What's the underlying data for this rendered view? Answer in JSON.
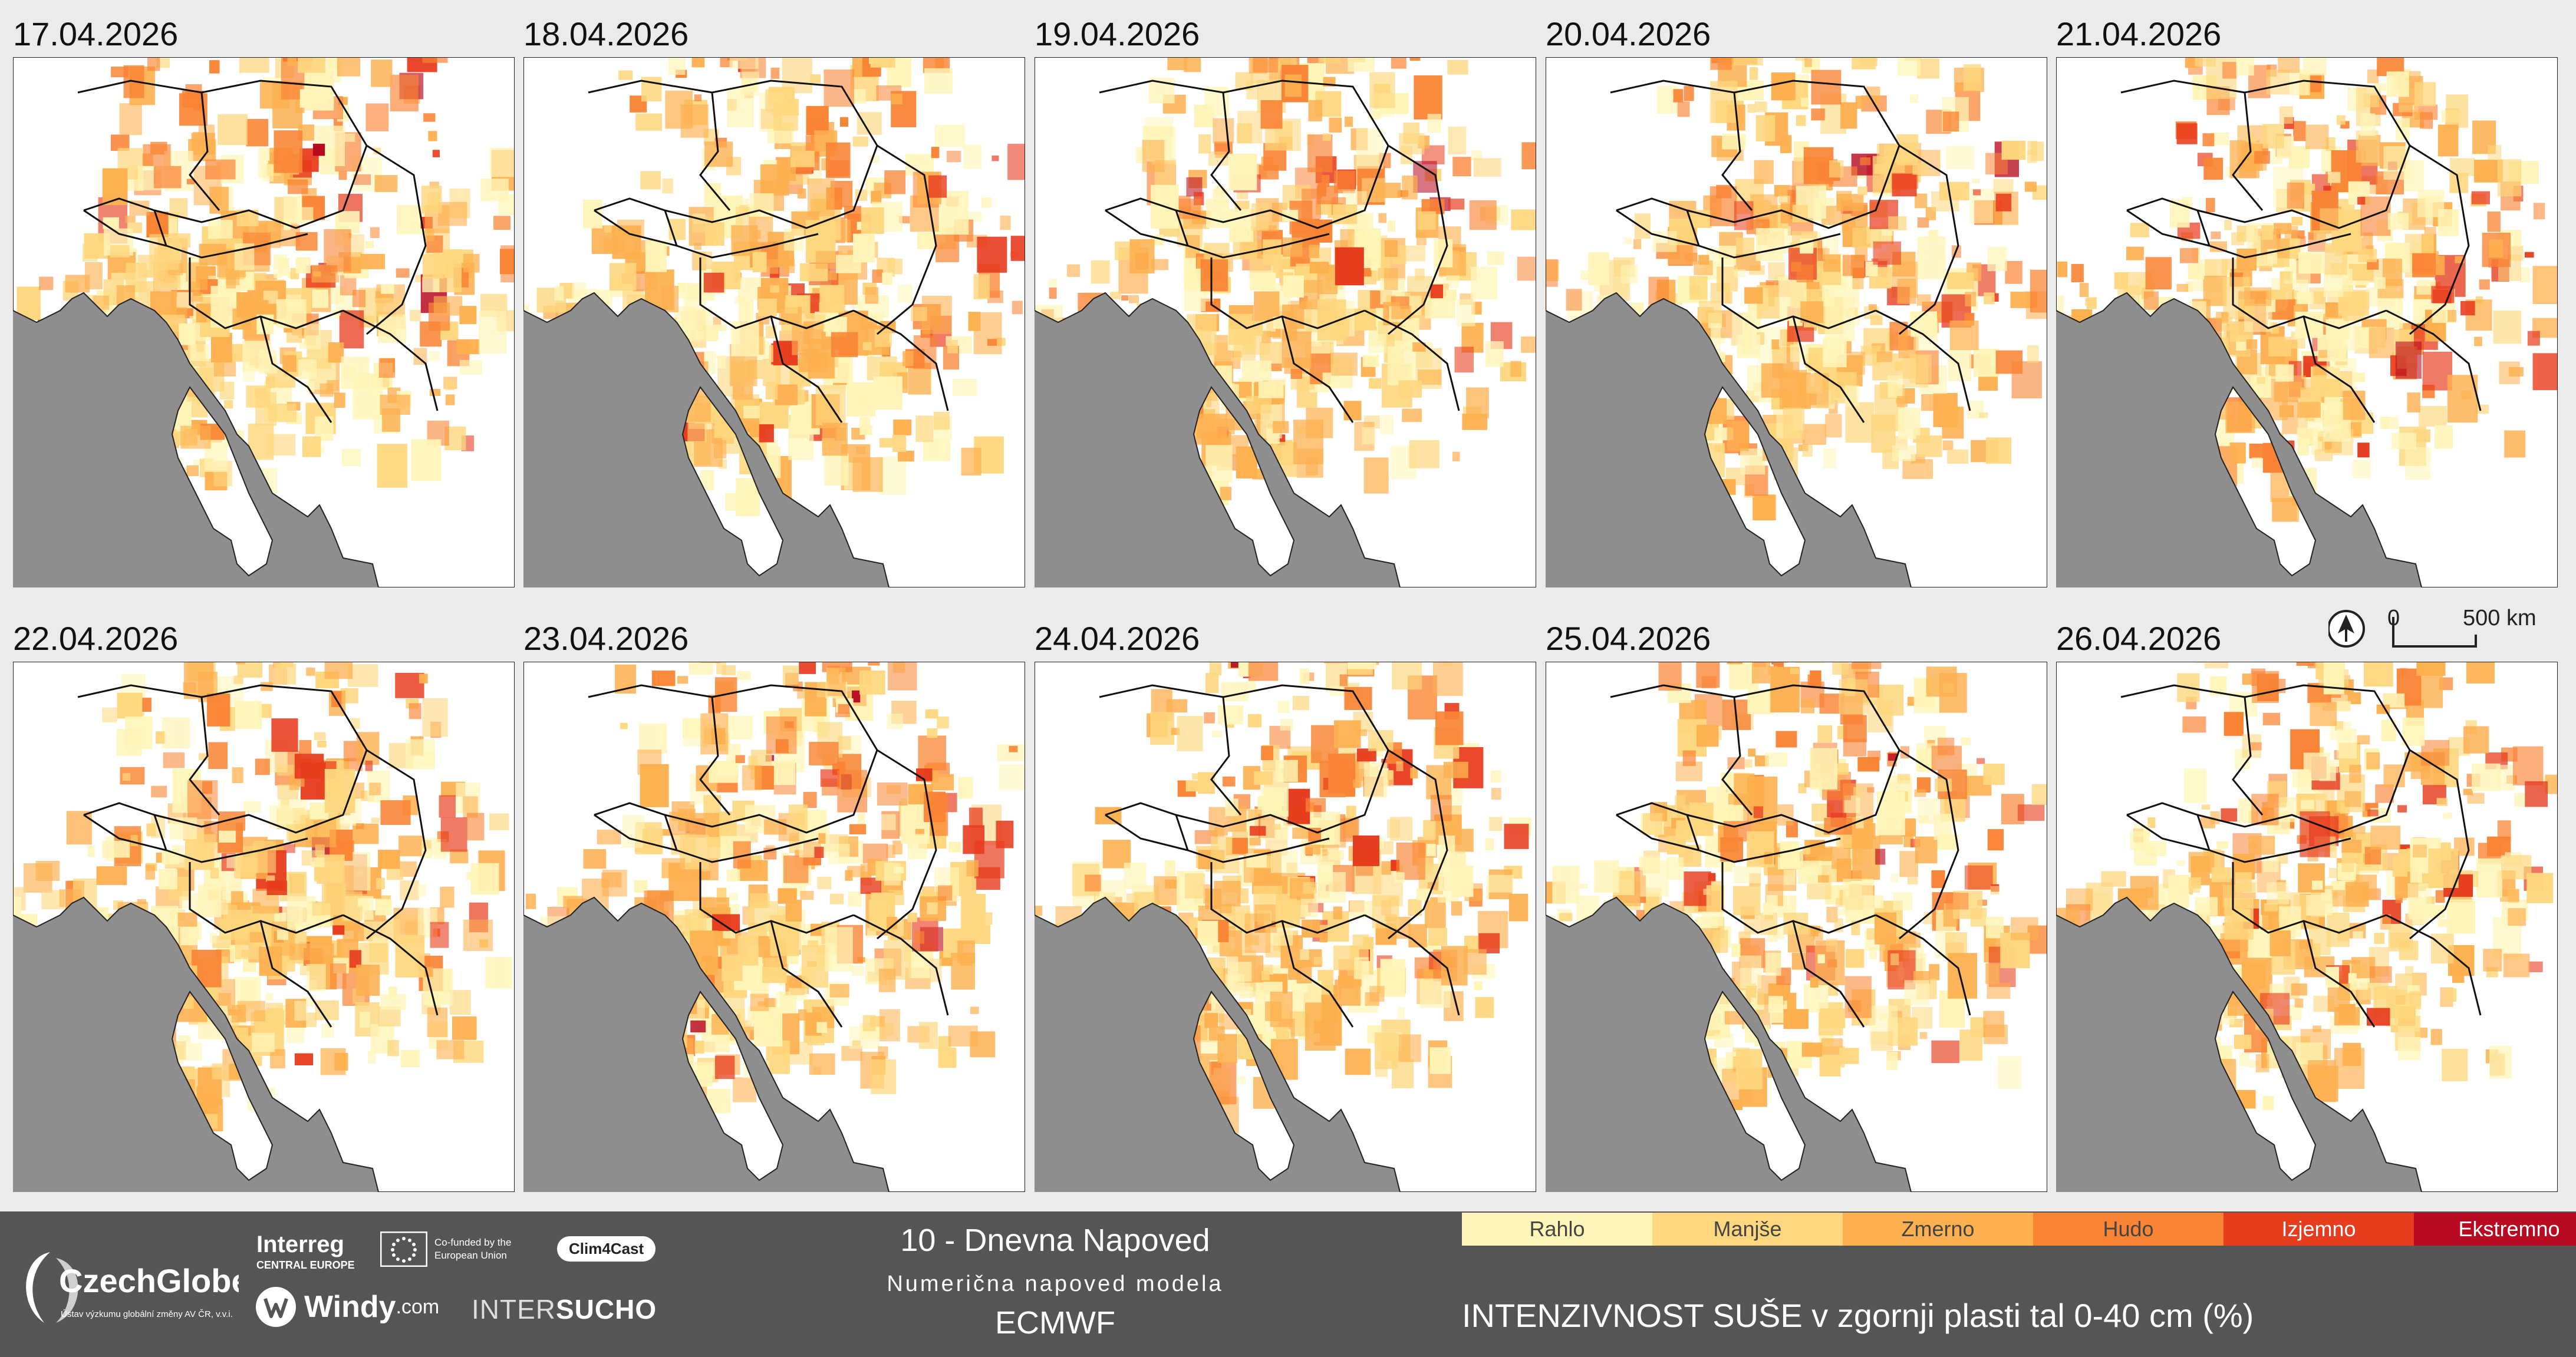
{
  "panels": [
    {
      "date": "17.04.2026"
    },
    {
      "date": "18.04.2026"
    },
    {
      "date": "19.04.2026"
    },
    {
      "date": "20.04.2026"
    },
    {
      "date": "21.04.2026"
    },
    {
      "date": "22.04.2026"
    },
    {
      "date": "23.04.2026"
    },
    {
      "date": "24.04.2026"
    },
    {
      "date": "25.04.2026"
    },
    {
      "date": "26.04.2026"
    }
  ],
  "scale": {
    "start": "0",
    "end": "500 km",
    "north_icon": "north-arrow-icon"
  },
  "footer": {
    "title": "10 - Dnevna Napoved",
    "subtitle": "Numerična napoved modela",
    "model": "ECMWF",
    "logos": {
      "czechglobe": "CzechGlobe",
      "czechglobe_sub": "Ústav výzkumu globální změny AV ČR, v.v.i.",
      "interreg": "Interreg",
      "interreg_sub": "CENTRAL EUROPE",
      "eu": "Co-funded by the European Union",
      "clim4cast": "Clim4Cast",
      "windy": "Windy",
      "windy_suffix": ".com",
      "intersucho_a": "INTER",
      "intersucho_b": "SUCHO"
    }
  },
  "legend": {
    "title": "INTENZIVNOST SUŠE v zgornji plasti tal 0-40 cm (%)",
    "classes": [
      {
        "label": "Rahlo",
        "color": "#fff5b8"
      },
      {
        "label": "Manjše",
        "color": "#fed77e"
      },
      {
        "label": "Zmerno",
        "color": "#fdb04f"
      },
      {
        "label": "Hudo",
        "color": "#f98434"
      },
      {
        "label": "Izjemno",
        "color": "#e73c1e"
      },
      {
        "label": "Ekstremno",
        "color": "#b80b22"
      }
    ]
  },
  "colors": {
    "sea": "#8e8e8e",
    "land_no_drought": "#ffffff",
    "background": "#ebebeb",
    "footer": "#555555"
  }
}
